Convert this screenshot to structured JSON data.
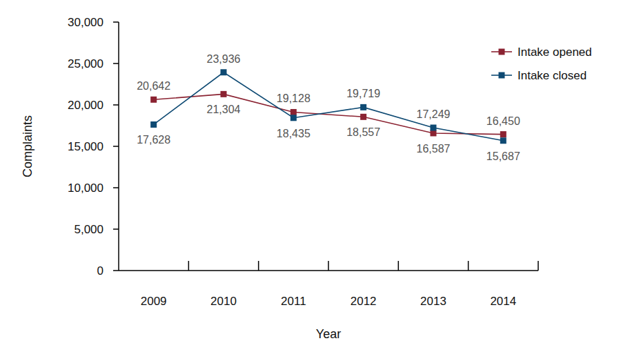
{
  "chart_data": {
    "type": "line",
    "x_label": "Year",
    "y_label": "Complaints",
    "categories": [
      "2009",
      "2010",
      "2011",
      "2012",
      "2013",
      "2014"
    ],
    "series": [
      {
        "name": "Intake opened",
        "color": "#8b2332",
        "marker": "square",
        "line_style": "solid",
        "values": [
          20642,
          21304,
          19128,
          18557,
          16587,
          16450
        ],
        "value_labels": [
          "20,642",
          "21,304",
          "19,128",
          "18,557",
          "16,587",
          "16,450"
        ]
      },
      {
        "name": "Intake closed",
        "color": "#0e4a73",
        "marker": "square",
        "line_style": "solid",
        "values": [
          17628,
          23936,
          18435,
          19719,
          17249,
          15687
        ],
        "value_labels": [
          "17,628",
          "23,936",
          "18,435",
          "19,719",
          "17,249",
          "15,687"
        ]
      }
    ],
    "ylim": [
      0,
      30000
    ],
    "yticks": [
      0,
      {
        "value": 5000,
        "label": "5,000"
      },
      {
        "value": 10000,
        "label": "10,000"
      },
      {
        "value": 15000,
        "label": "15,000"
      },
      {
        "value": 20000,
        "label": "20,000"
      },
      {
        "value": 25000,
        "label": "25,000"
      },
      {
        "value": 30000,
        "label": "30,000"
      }
    ],
    "grid": false,
    "legend": "top-right",
    "data_labels": true
  }
}
